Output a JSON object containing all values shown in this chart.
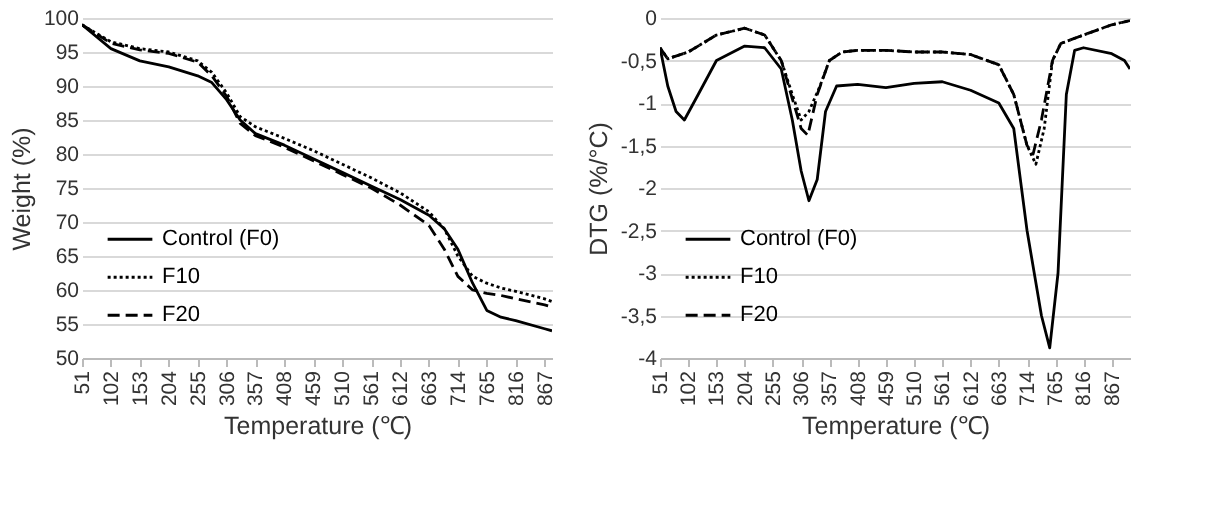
{
  "chart_data": [
    {
      "type": "line",
      "xlabel": "Temperature (℃)",
      "ylabel": "Weight (%)",
      "xlim": [
        51,
        880
      ],
      "xticks": [
        51,
        102,
        153,
        204,
        255,
        306,
        357,
        408,
        459,
        510,
        561,
        612,
        663,
        714,
        765,
        816,
        867
      ],
      "ylim": [
        50,
        100
      ],
      "yticks": [
        50,
        55,
        60,
        65,
        70,
        75,
        80,
        85,
        90,
        95,
        100
      ],
      "grid": "y",
      "legend": "left",
      "x": [
        51,
        102,
        153,
        204,
        255,
        280,
        306,
        330,
        357,
        408,
        459,
        510,
        561,
        612,
        663,
        690,
        714,
        740,
        765,
        790,
        816,
        867,
        880
      ],
      "series": [
        {
          "name": "Control (F0)",
          "color": "#000000",
          "line_style": "solid",
          "values": [
            99,
            95.5,
            93.7,
            92.8,
            91.5,
            90.5,
            88,
            85,
            83,
            81.3,
            79.3,
            77.3,
            75.3,
            73.3,
            71,
            69,
            66,
            61,
            57,
            56,
            55.5,
            54.3,
            54
          ]
        },
        {
          "name": "F10",
          "color": "#000000",
          "line_style": "dotted",
          "values": [
            99,
            96.5,
            95.5,
            95,
            93.7,
            92,
            89,
            85.5,
            84,
            82.3,
            80.5,
            78.5,
            76.5,
            74.3,
            71.5,
            69,
            65,
            62,
            61,
            60.3,
            59.8,
            58.7,
            58.3
          ]
        },
        {
          "name": "F20",
          "color": "#000000",
          "line_style": "dashed",
          "values": [
            99,
            96.3,
            95.3,
            94.8,
            93.5,
            91.5,
            88.5,
            84.5,
            82.7,
            81,
            79,
            77,
            75,
            72.5,
            69.5,
            66,
            62,
            60,
            59.5,
            59.2,
            58.7,
            57.8,
            57.5
          ]
        }
      ]
    },
    {
      "type": "line",
      "xlabel": "Temperature (℃)",
      "ylabel": "DTG (%/°C)",
      "xlim": [
        51,
        900
      ],
      "xticks": [
        51,
        102,
        153,
        204,
        255,
        306,
        357,
        408,
        459,
        510,
        561,
        612,
        663,
        714,
        765,
        816,
        867
      ],
      "ylim": [
        -4,
        0
      ],
      "yticks": [
        {
          "value": -4,
          "label": "-4"
        },
        {
          "value": -3.5,
          "label": "-3,5"
        },
        {
          "value": -3,
          "label": "-3"
        },
        {
          "value": -2.5,
          "label": "-2,5"
        },
        {
          "value": -2,
          "label": "-2"
        },
        {
          "value": -1.5,
          "label": "-1,5"
        },
        {
          "value": -1,
          "label": "-1"
        },
        {
          "value": -0.5,
          "label": "-0,5"
        },
        {
          "value": 0,
          "label": "0"
        }
      ],
      "grid": "y",
      "legend": "left",
      "series": [
        {
          "name": "Control (F0)",
          "color": "#000000",
          "line_style": "solid",
          "x": [
            51,
            65,
            80,
            95,
            120,
            153,
            204,
            240,
            270,
            290,
            306,
            320,
            335,
            350,
            370,
            408,
            459,
            510,
            561,
            612,
            663,
            690,
            714,
            740,
            755,
            770,
            785,
            800,
            816,
            867,
            890,
            900
          ],
          "values": [
            -0.35,
            -0.8,
            -1.1,
            -1.2,
            -0.9,
            -0.5,
            -0.33,
            -0.35,
            -0.6,
            -1.2,
            -1.8,
            -2.15,
            -1.9,
            -1.1,
            -0.8,
            -0.78,
            -0.82,
            -0.77,
            -0.75,
            -0.85,
            -1,
            -1.3,
            -2.5,
            -3.5,
            -3.88,
            -3,
            -0.9,
            -0.38,
            -0.35,
            -0.42,
            -0.5,
            -0.6
          ]
        },
        {
          "name": "F10",
          "color": "#000000",
          "line_style": "dotted",
          "x": [
            51,
            65,
            102,
            153,
            204,
            240,
            270,
            290,
            306,
            320,
            340,
            357,
            380,
            408,
            459,
            510,
            561,
            612,
            663,
            690,
            714,
            730,
            745,
            760,
            775,
            816,
            867,
            900
          ],
          "values": [
            -0.35,
            -0.48,
            -0.4,
            -0.2,
            -0.12,
            -0.2,
            -0.5,
            -0.9,
            -1.2,
            -1.1,
            -0.8,
            -0.5,
            -0.4,
            -0.38,
            -0.38,
            -0.4,
            -0.4,
            -0.43,
            -0.55,
            -0.9,
            -1.5,
            -1.72,
            -1.3,
            -0.5,
            -0.3,
            -0.2,
            -0.08,
            -0.03
          ]
        },
        {
          "name": "F20",
          "color": "#000000",
          "line_style": "dashed",
          "x": [
            51,
            65,
            102,
            153,
            204,
            240,
            270,
            290,
            306,
            318,
            335,
            357,
            380,
            408,
            459,
            510,
            561,
            612,
            663,
            690,
            714,
            725,
            740,
            760,
            775,
            816,
            867,
            900
          ],
          "values": [
            -0.35,
            -0.48,
            -0.4,
            -0.2,
            -0.12,
            -0.2,
            -0.5,
            -0.95,
            -1.3,
            -1.38,
            -0.9,
            -0.5,
            -0.4,
            -0.38,
            -0.38,
            -0.4,
            -0.4,
            -0.43,
            -0.55,
            -0.9,
            -1.5,
            -1.6,
            -1.2,
            -0.5,
            -0.3,
            -0.2,
            -0.08,
            -0.03
          ]
        }
      ]
    }
  ]
}
